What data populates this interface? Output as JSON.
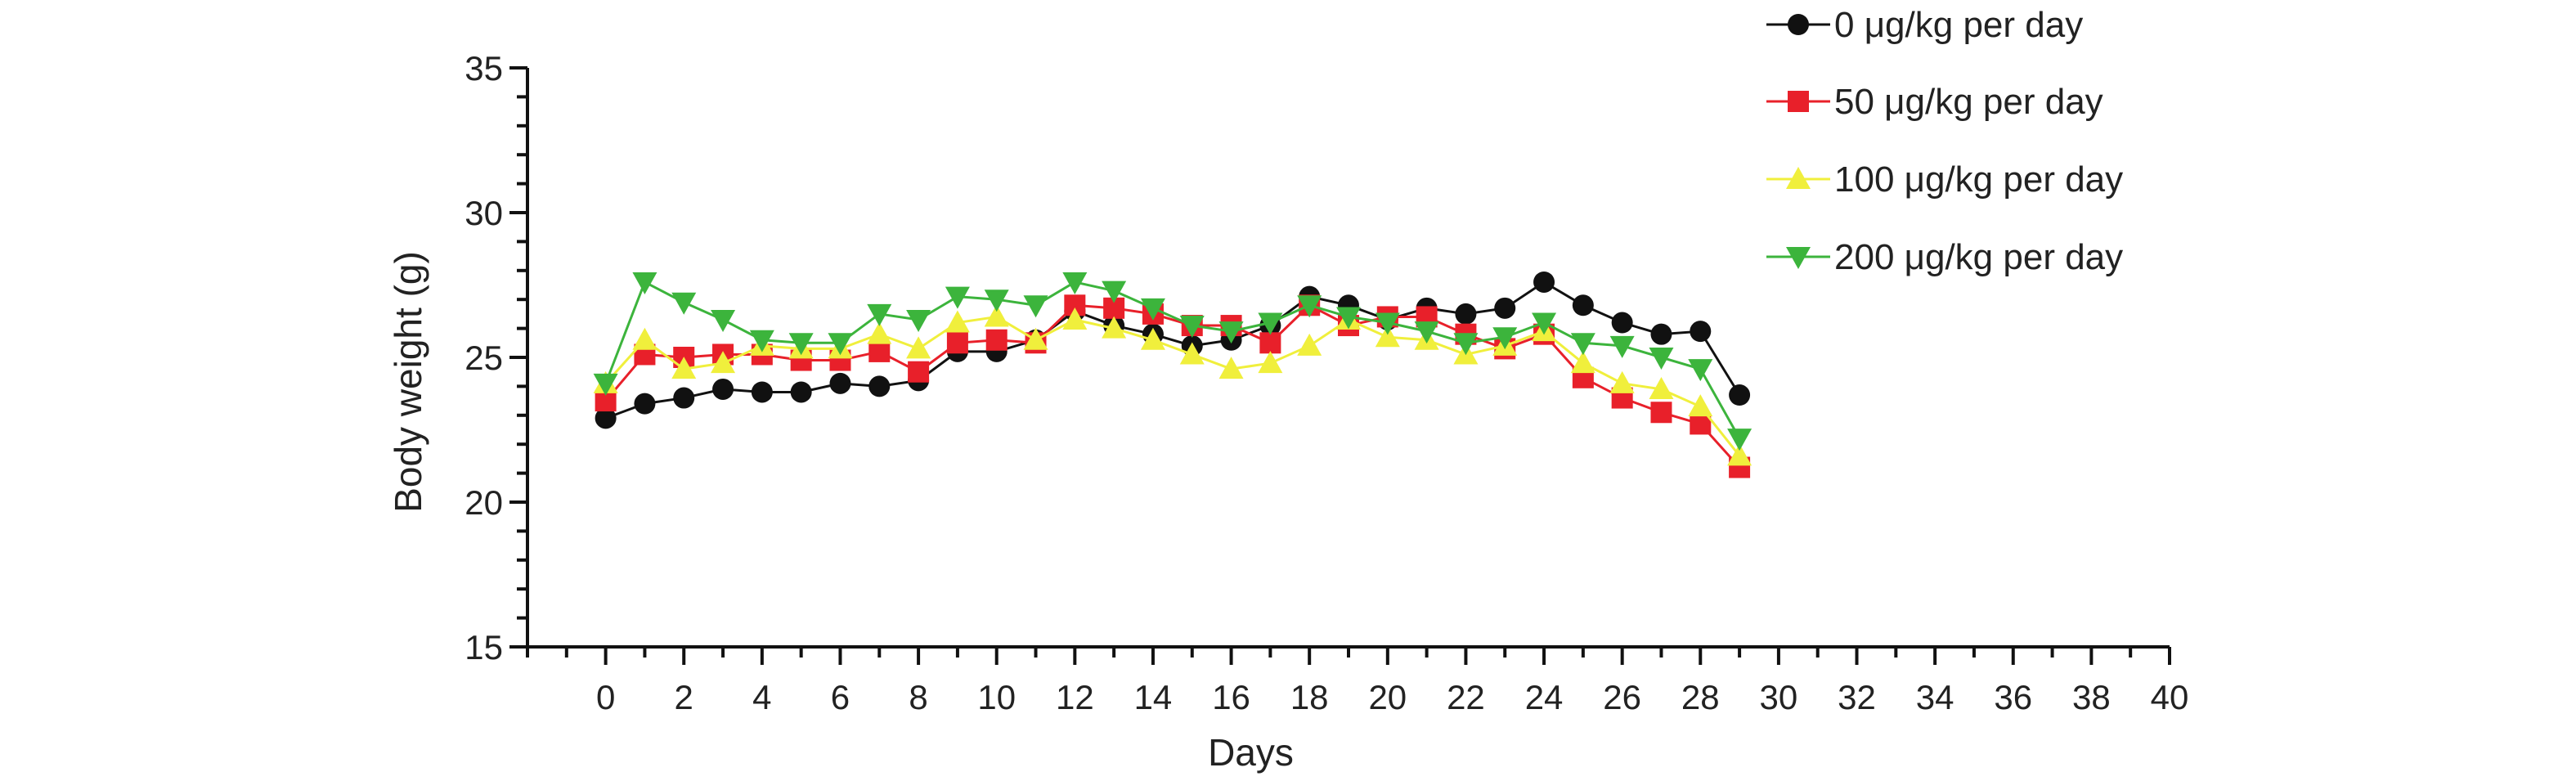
{
  "chart_data": {
    "type": "line",
    "xlabel": "Days",
    "ylabel": "Body weight (g)",
    "xlim": [
      -2,
      40
    ],
    "ylim": [
      15,
      35
    ],
    "x_ticks": [
      0,
      2,
      4,
      6,
      8,
      10,
      12,
      14,
      16,
      18,
      20,
      22,
      24,
      26,
      28,
      30,
      32,
      34,
      36,
      38,
      40
    ],
    "y_ticks": [
      15,
      20,
      25,
      30,
      35
    ],
    "legend_position": "top-right",
    "grid": false,
    "x": [
      0,
      1,
      2,
      3,
      4,
      5,
      6,
      7,
      8,
      9,
      10,
      11,
      12,
      13,
      14,
      15,
      16,
      17,
      18,
      19,
      20,
      21,
      22,
      23,
      24,
      25,
      26,
      27,
      28,
      29
    ],
    "series": [
      {
        "name": "0 μg/kg per day",
        "color": "#111111",
        "marker": "circle",
        "values": [
          22.9,
          23.4,
          23.6,
          23.9,
          23.8,
          23.8,
          24.1,
          24.0,
          24.2,
          25.2,
          25.2,
          25.6,
          26.6,
          26.1,
          25.8,
          25.4,
          25.6,
          26.1,
          27.1,
          26.8,
          26.3,
          26.7,
          26.5,
          26.7,
          27.6,
          26.8,
          26.2,
          25.8,
          25.9,
          23.7
        ]
      },
      {
        "name": "50 μg/kg per day",
        "color": "#e8202a",
        "marker": "square",
        "values": [
          23.5,
          25.1,
          25.0,
          25.1,
          25.1,
          24.9,
          24.9,
          25.2,
          24.5,
          25.5,
          25.6,
          25.5,
          26.8,
          26.7,
          26.5,
          26.1,
          26.1,
          25.5,
          26.8,
          26.1,
          26.4,
          26.4,
          25.8,
          25.3,
          25.8,
          24.3,
          23.6,
          23.1,
          22.7,
          21.2
        ]
      },
      {
        "name": "100 μg/kg per day",
        "color": "#f0ef3c",
        "marker": "triangle-up",
        "values": [
          24.1,
          25.6,
          24.6,
          24.8,
          25.4,
          25.3,
          25.3,
          25.8,
          25.3,
          26.2,
          26.4,
          25.6,
          26.3,
          26.0,
          25.6,
          25.1,
          24.6,
          24.8,
          25.4,
          26.3,
          25.7,
          25.6,
          25.1,
          25.4,
          25.9,
          24.8,
          24.1,
          23.9,
          23.3,
          21.6
        ]
      },
      {
        "name": "200 μg/kg per day",
        "color": "#3cb43c",
        "marker": "triangle-down",
        "values": [
          24.1,
          27.6,
          26.9,
          26.3,
          25.6,
          25.5,
          25.5,
          26.5,
          26.3,
          27.1,
          27.0,
          26.8,
          27.6,
          27.3,
          26.7,
          26.1,
          25.9,
          26.2,
          26.8,
          26.4,
          26.2,
          25.9,
          25.5,
          25.7,
          26.2,
          25.5,
          25.4,
          25.0,
          24.6,
          22.2
        ]
      }
    ]
  }
}
